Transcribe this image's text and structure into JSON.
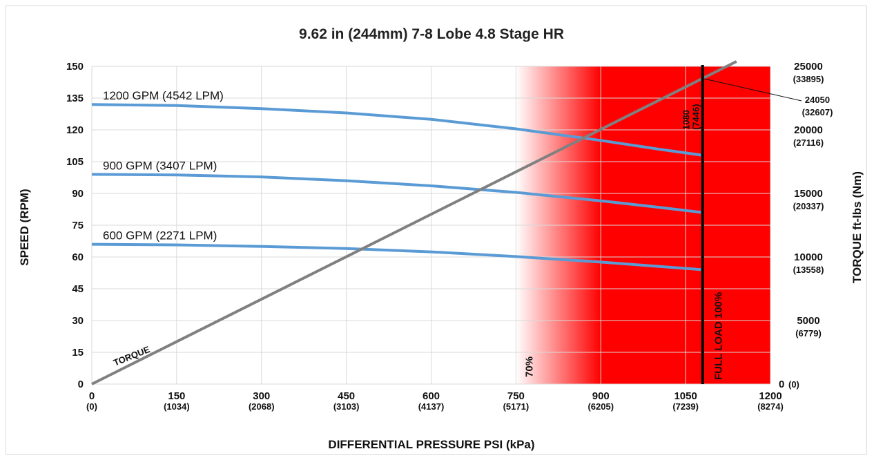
{
  "chart_data": {
    "type": "line",
    "title": "9.62 in (244mm) 7-8 Lobe 4.8 Stage HR",
    "xlabel": "DIFFERENTIAL PRESSURE PSI (kPa)",
    "ylabel": "SPEED (RPM)",
    "y2label": "TORQUE ft-lbs (Nm)",
    "xlim": [
      0,
      1200
    ],
    "ylim": [
      0,
      150
    ],
    "y2lim": [
      0,
      25000
    ],
    "grid": true,
    "x_ticks": [
      {
        "value": 0,
        "label": "0",
        "sub": "(0)"
      },
      {
        "value": 150,
        "label": "150",
        "sub": "(1034)"
      },
      {
        "value": 300,
        "label": "300",
        "sub": "(2068)"
      },
      {
        "value": 450,
        "label": "450",
        "sub": "(3103)"
      },
      {
        "value": 600,
        "label": "600",
        "sub": "(4137)"
      },
      {
        "value": 750,
        "label": "750",
        "sub": "(5171)"
      },
      {
        "value": 900,
        "label": "900",
        "sub": "(6205)"
      },
      {
        "value": 1050,
        "label": "1050",
        "sub": "(7239)"
      },
      {
        "value": 1200,
        "label": "1200",
        "sub": "(8274)"
      }
    ],
    "y_ticks": [
      0,
      15,
      30,
      45,
      60,
      75,
      90,
      105,
      120,
      135,
      150
    ],
    "y2_ticks": [
      {
        "value": 0,
        "label": "0",
        "sub": "(0)"
      },
      {
        "value": 5000,
        "label": "5000",
        "sub": "(6779)"
      },
      {
        "value": 10000,
        "label": "10000",
        "sub": "(13558)"
      },
      {
        "value": 15000,
        "label": "15000",
        "sub": "(20337)"
      },
      {
        "value": 20000,
        "label": "20000",
        "sub": "(27116)"
      },
      {
        "value": 25000,
        "label": "25000",
        "sub": "(33895)"
      }
    ],
    "series": [
      {
        "name": "1200 GPM (4542 LPM)",
        "axis": "left",
        "color": "#5b9bd5",
        "x": [
          0,
          150,
          300,
          450,
          600,
          750,
          900,
          1000,
          1080
        ],
        "y": [
          132,
          131.5,
          130,
          128,
          125,
          120.5,
          115,
          111,
          108
        ]
      },
      {
        "name": "900 GPM (3407 LPM)",
        "axis": "left",
        "color": "#5b9bd5",
        "x": [
          0,
          150,
          300,
          450,
          600,
          750,
          900,
          1000,
          1080
        ],
        "y": [
          99,
          98.7,
          97.8,
          96,
          93.6,
          90.5,
          86.5,
          83.5,
          81
        ]
      },
      {
        "name": "600 GPM (2271 LPM)",
        "axis": "left",
        "color": "#5b9bd5",
        "x": [
          0,
          150,
          300,
          450,
          600,
          750,
          900,
          1000,
          1080
        ],
        "y": [
          66,
          65.7,
          65,
          64,
          62.4,
          60.2,
          57.6,
          55.6,
          54
        ]
      },
      {
        "name": "TORQUE",
        "axis": "right",
        "color": "#808080",
        "x": [
          0,
          1140
        ],
        "y": [
          0,
          25380
        ]
      }
    ],
    "zones": {
      "gradient_start_x": 750,
      "gradient_end_x": 900,
      "red_end_x": 1200,
      "color": "#ff0000",
      "label_70": "70%",
      "full_load_x": 1080,
      "full_load_label": "FULL LOAD 100%"
    },
    "annotations": {
      "full_load_psi": "1080",
      "full_load_kpa": "(7446)",
      "max_torque": "24050",
      "max_torque_nm": "(32607)"
    }
  }
}
